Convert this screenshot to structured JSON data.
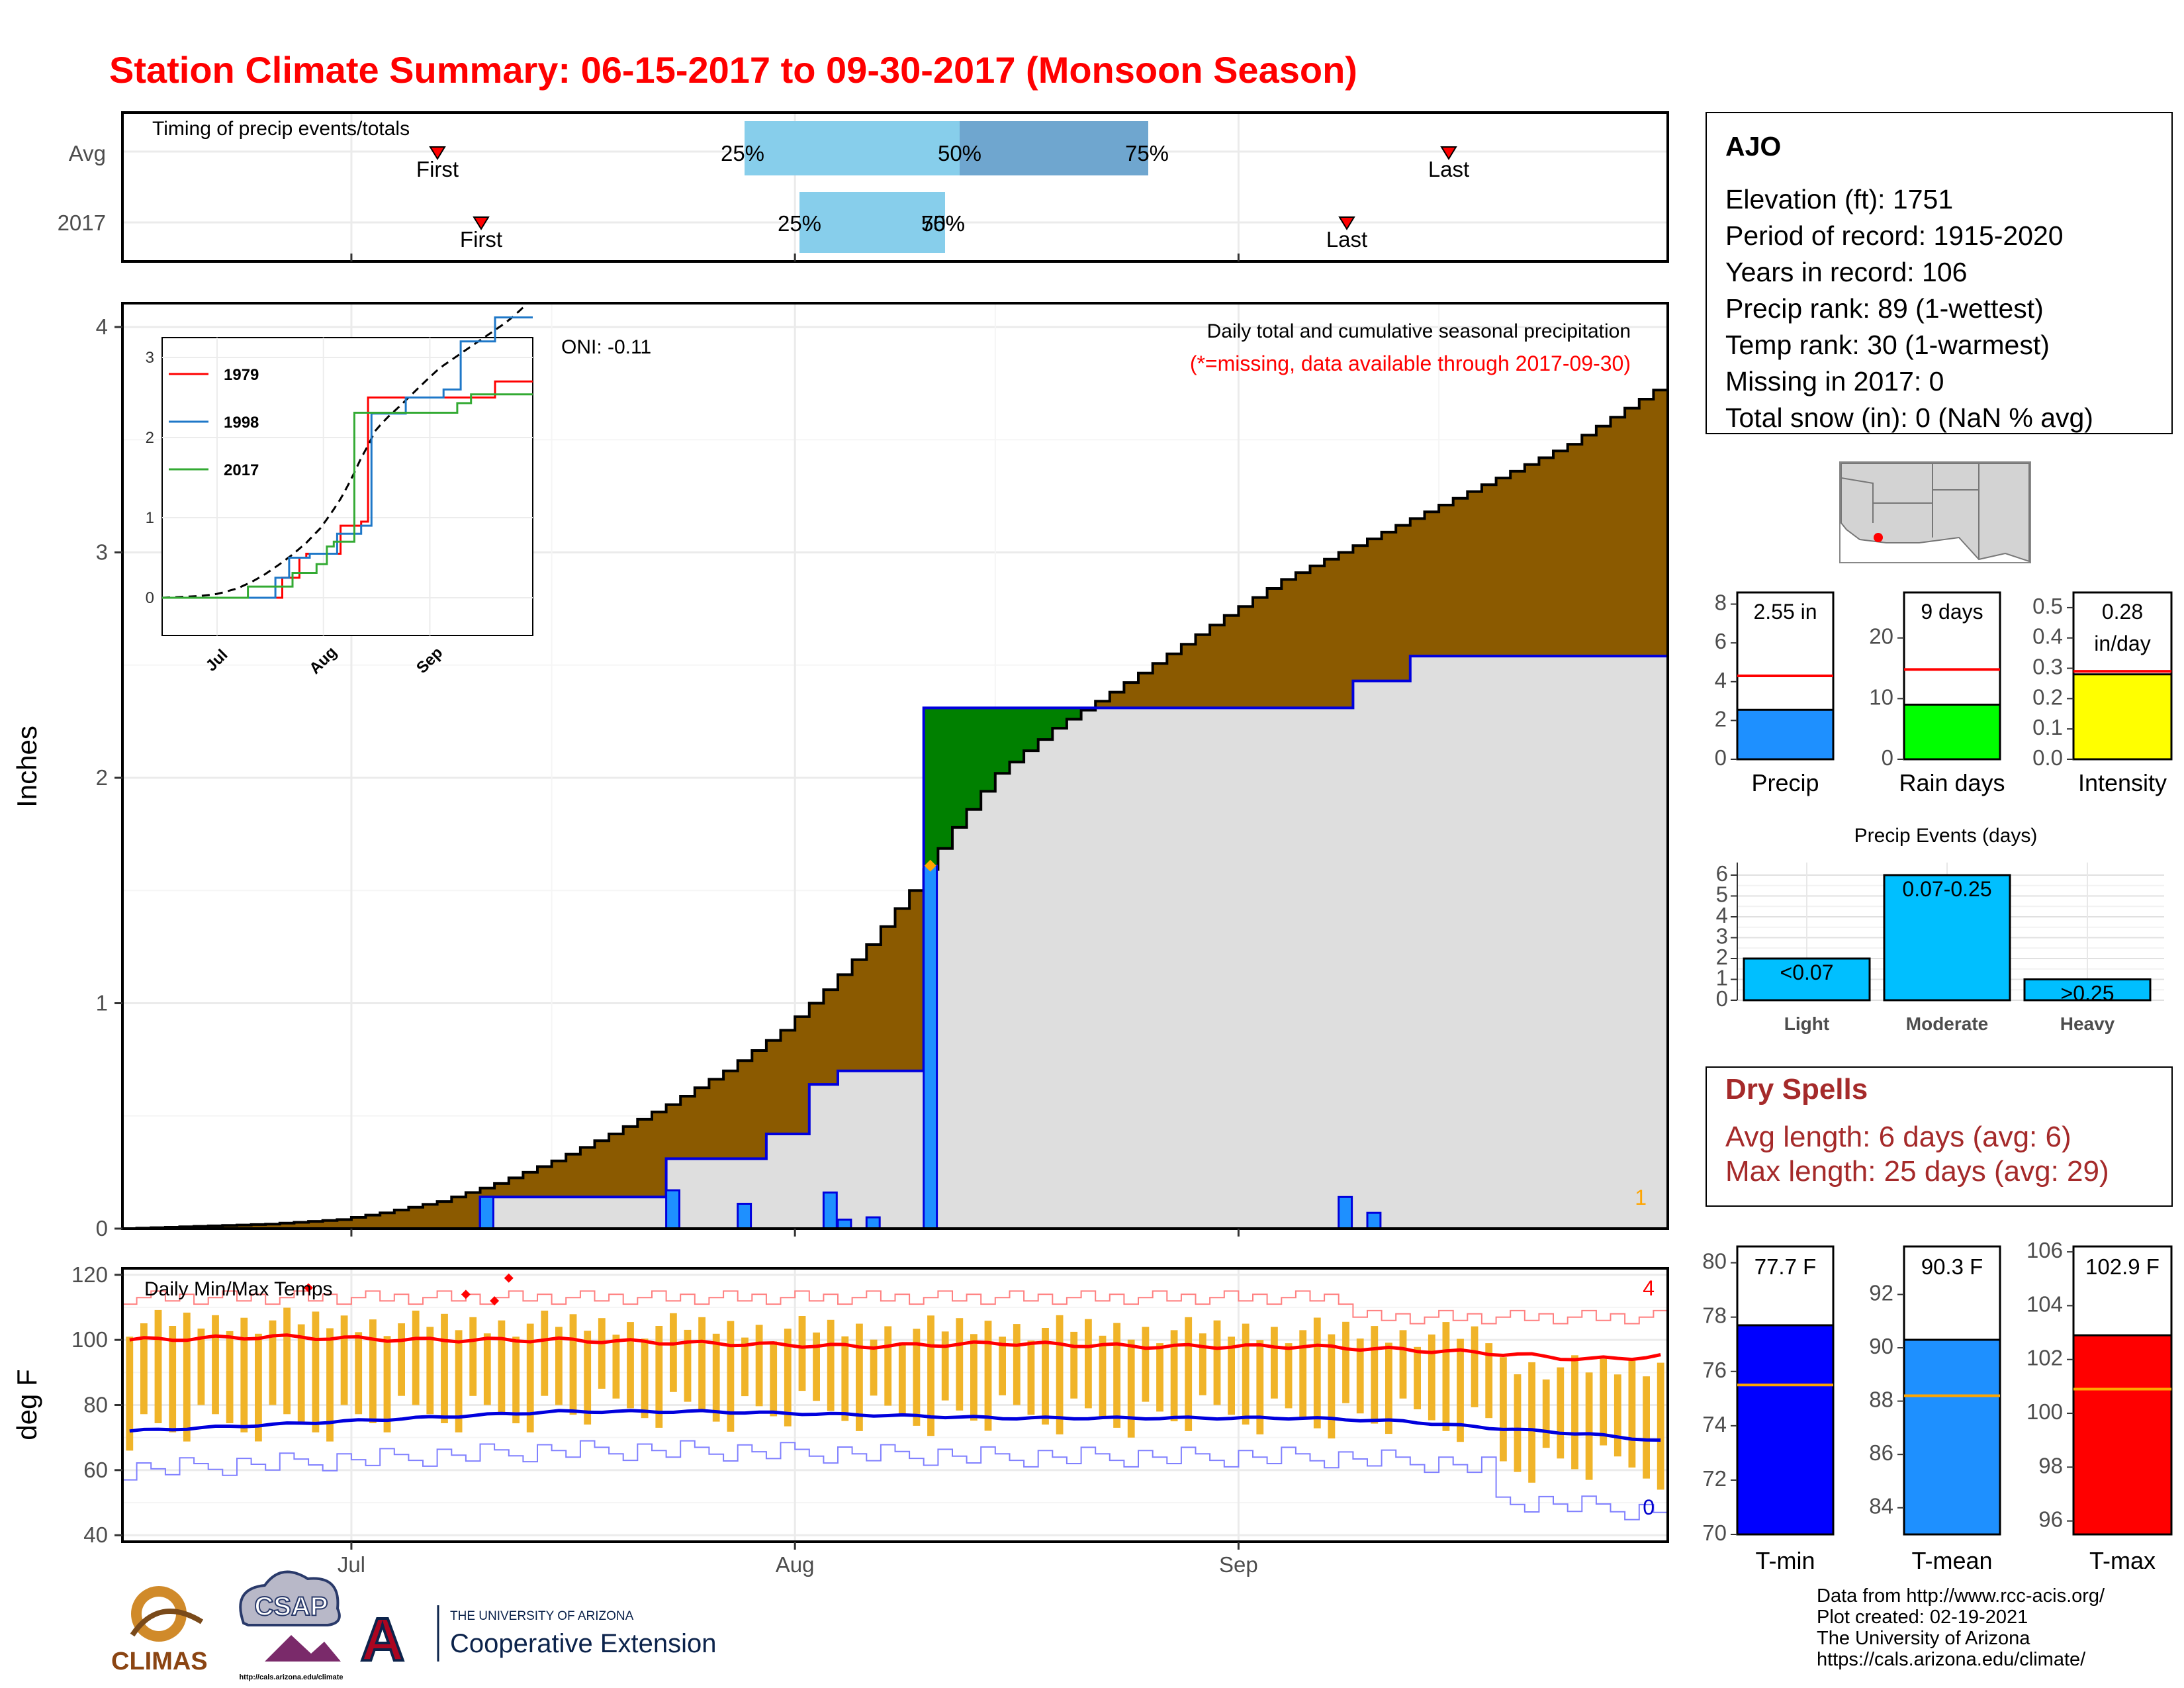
{
  "title": "Station Climate Summary: 06-15-2017 to 09-30-2017 (Monsoon Season)",
  "timing": {
    "title": "Timing of precip events/totals",
    "rows": [
      {
        "label": "Avg",
        "q25": "25%",
        "q50": "50%",
        "q75": "75%",
        "first": "First",
        "last": "Last"
      },
      {
        "label": "2017",
        "q25": "25%",
        "q50": "50%",
        "q75": "75%",
        "first": "First",
        "last": "Last"
      }
    ],
    "bar_color_light": "#87ceeb",
    "bar_color_dark": "#6fa6cf"
  },
  "precip_panel": {
    "ylabel": "Inches",
    "header": "Daily total and cumulative seasonal precipitation",
    "note": "(*=missing, data available through 2017-09-30)",
    "oni": "ONI: -0.11",
    "corner_count": "1",
    "yticks": [
      "0",
      "1",
      "2",
      "3",
      "4"
    ]
  },
  "temp_panel": {
    "ylabel": "deg F",
    "header": "Daily Min/Max Temps",
    "yticks": [
      "40",
      "60",
      "80",
      "100",
      "120"
    ],
    "count_max": "4",
    "count_min": "0"
  },
  "xticks": [
    "Jul",
    "Aug",
    "Sep"
  ],
  "inset": {
    "yticks": [
      "0",
      "1",
      "2",
      "3"
    ],
    "xticks": [
      "Jul",
      "Aug",
      "Sep"
    ],
    "legend": [
      {
        "name": "1979",
        "color": "#ff0000"
      },
      {
        "name": "1998",
        "color": "#1f78c8"
      },
      {
        "name": "2017",
        "color": "#33aa33"
      }
    ]
  },
  "station": {
    "name": "AJO",
    "lines": [
      "Elevation (ft): 1751",
      "Period of record: 1915-2020",
      "Years in record: 106",
      "Precip rank: 89 (1-wettest)",
      "Temp rank: 30 (1-warmest)",
      "Missing in 2017: 0",
      "Total snow (in): 0 (NaN % avg)"
    ]
  },
  "summary_bars": [
    {
      "label": "Precip",
      "value_text": "2.55 in",
      "yticks": [
        "0",
        "2",
        "4",
        "6",
        "8"
      ],
      "color": "#1e90ff"
    },
    {
      "label": "Rain days",
      "value_text": "9 days",
      "yticks": [
        "0",
        "10",
        "20"
      ],
      "color": "#00ff00"
    },
    {
      "label": "Intensity",
      "value_text_1": "0.28",
      "value_text_2": "in/day",
      "yticks": [
        "0.0",
        "0.1",
        "0.2",
        "0.3",
        "0.4",
        "0.5"
      ],
      "color": "#ffff00"
    }
  ],
  "events": {
    "title": "Precip Events (days)",
    "yticks": [
      "0",
      "1",
      "2",
      "3",
      "4",
      "5",
      "6"
    ],
    "categories": [
      "Light",
      "Moderate",
      "Heavy"
    ],
    "bar_labels": [
      "<0.07",
      "0.07-0.25",
      ">0.25"
    ],
    "color": "#00bfff"
  },
  "dry_spells": {
    "title": "Dry Spells",
    "avg": "Avg length: 6 days (avg: 6)",
    "max": "Max length: 25 days (avg: 29)"
  },
  "temp_bars": [
    {
      "label": "T-min",
      "value_text": "77.7 F",
      "yticks": [
        "70",
        "72",
        "74",
        "76",
        "78",
        "80"
      ],
      "color": "#0000ff"
    },
    {
      "label": "T-mean",
      "value_text": "90.3 F",
      "yticks": [
        "84",
        "86",
        "88",
        "90",
        "92"
      ],
      "color": "#1e90ff"
    },
    {
      "label": "T-max",
      "value_text": "102.9 F",
      "yticks": [
        "96",
        "98",
        "100",
        "102",
        "104",
        "106"
      ],
      "color": "#ff0000"
    }
  ],
  "footer": [
    "Data from http://www.rcc-acis.org/",
    "Plot created: 02-19-2021",
    "The University of Arizona",
    "https://cals.arizona.edu/climate/"
  ],
  "logos": {
    "climas": "CLIMAS",
    "csap": "CSAP",
    "csap_url": "http://cals.arizona.edu/climate",
    "ua_small": "THE UNIVERSITY OF ARIZONA",
    "ua_big": "Cooperative Extension",
    "ua_letter": "A"
  },
  "chart_data": [
    {
      "type": "area",
      "title": "Daily total and cumulative seasonal precipitation",
      "ylabel": "Inches",
      "ylim": [
        0,
        4.1
      ],
      "x_start": "2017-06-15",
      "x_end": "2017-09-30",
      "series": [
        {
          "name": "Average cumulative",
          "values": [
            0,
            0.01,
            0.02,
            0.04,
            0.07,
            0.12,
            0.2,
            0.3,
            0.42,
            0.55,
            0.7,
            0.88,
            1.06,
            1.26,
            1.5,
            1.78,
            2.02,
            2.22,
            2.38,
            2.55,
            2.72,
            2.88,
            3.0,
            3.12,
            3.24,
            3.33,
            3.42,
            3.48,
            3.56,
            3.64,
            3.72
          ],
          "dates": [
            "06-15",
            "06-20",
            "06-25",
            "06-30",
            "07-03",
            "07-07",
            "07-11",
            "07-15",
            "07-19",
            "07-23",
            "07-27",
            "07-31",
            "08-03",
            "08-06",
            "08-09",
            "08-12",
            "08-15",
            "08-19",
            "08-23",
            "08-27",
            "08-31",
            "09-04",
            "09-08",
            "09-12",
            "09-16",
            "09-19",
            "09-22",
            "09-24",
            "09-26",
            "09-28",
            "09-30"
          ]
        },
        {
          "name": "2017 cumulative",
          "values": [
            0,
            0.14,
            0.31,
            0.42,
            0.64,
            0.7,
            2.31,
            2.31,
            2.43,
            2.54,
            2.54
          ],
          "dates": [
            "06-15",
            "07-10",
            "07-23",
            "07-30",
            "08-02",
            "08-04",
            "08-10",
            "09-08",
            "09-09",
            "09-13",
            "09-30"
          ]
        }
      ],
      "daily_2017": [
        {
          "date": "07-10",
          "value": 0.14
        },
        {
          "date": "07-23",
          "value": 0.17
        },
        {
          "date": "07-28",
          "value": 0.11
        },
        {
          "date": "08-03",
          "value": 0.16
        },
        {
          "date": "08-04",
          "value": 0.04
        },
        {
          "date": "08-06",
          "value": 0.05
        },
        {
          "date": "08-10",
          "value": 1.61
        },
        {
          "date": "09-08",
          "value": 0.14
        },
        {
          "date": "09-10",
          "value": 0.07
        }
      ]
    },
    {
      "type": "line",
      "title": "Daily Min/Max Temps",
      "ylabel": "deg F",
      "ylim": [
        38,
        122
      ],
      "series": [
        {
          "name": "Avg max",
          "values": [
            100,
            101,
            100,
            100,
            99,
            98,
            99,
            98,
            98,
            97,
            96,
            94,
            95
          ]
        },
        {
          "name": "Avg min",
          "values": [
            72,
            74,
            76,
            78,
            78,
            77,
            76,
            76,
            76,
            75,
            73,
            71,
            69
          ]
        }
      ],
      "dates": [
        "06-15",
        "06-25",
        "07-05",
        "07-15",
        "07-25",
        "08-05",
        "08-15",
        "08-25",
        "09-05",
        "09-12",
        "09-18",
        "09-25",
        "09-30"
      ]
    },
    {
      "type": "bar",
      "title": "Precip Events (days)",
      "categories": [
        "Light",
        "Moderate",
        "Heavy"
      ],
      "values": [
        2,
        6,
        1
      ]
    },
    {
      "type": "bar",
      "categories": [
        "Precip",
        "Rain days",
        "Intensity"
      ],
      "values": [
        2.55,
        9,
        0.28
      ],
      "averages": [
        4.3,
        14.8,
        0.29
      ]
    },
    {
      "type": "bar",
      "categories": [
        "T-min",
        "T-mean",
        "T-max"
      ],
      "values": [
        77.7,
        90.3,
        102.9
      ],
      "averages": [
        75.5,
        88.2,
        100.9
      ]
    }
  ]
}
